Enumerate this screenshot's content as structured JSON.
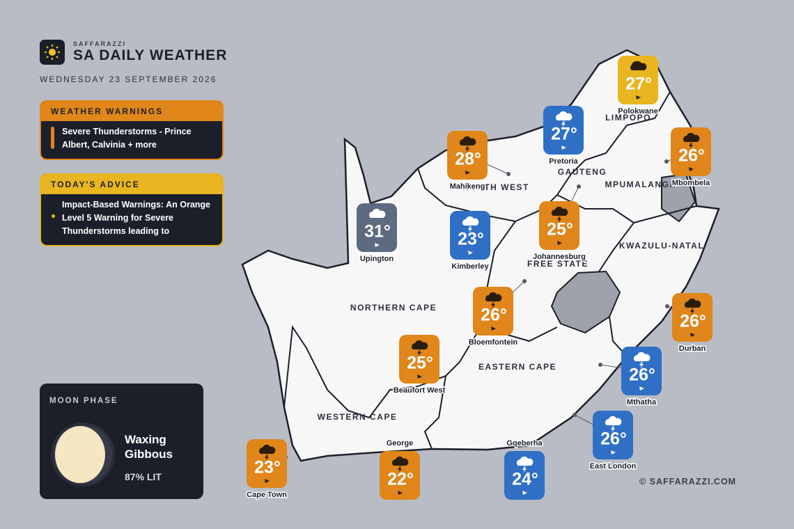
{
  "header": {
    "brand": "SAFFARAZZI",
    "title": "SA DAILY WEATHER",
    "date": "WEDNESDAY 23 SEPTEMBER 2026"
  },
  "warnings": {
    "title": "WEATHER WARNINGS",
    "text": "Severe Thunderstorms - Prince Albert, Calvinia + more"
  },
  "advice": {
    "title": "TODAY'S ADVICE",
    "text": "Impact-Based Warnings: An Orange Level 5 Warning for Severe Thunderstorms leading to"
  },
  "moon": {
    "title": "MOON PHASE",
    "phase": "Waxing Gibbous",
    "lit": "87% LIT"
  },
  "credit": "© SAFFARAZZI.COM",
  "provinces": [
    "LIMPOPO",
    "NORTH WEST",
    "GAUTENG",
    "MPUMALANGA",
    "KWAZULU-NATAL",
    "FREE STATE",
    "NORTHERN CAPE",
    "EASTERN CAPE",
    "WESTERN CAPE"
  ],
  "cities": [
    {
      "name": "Polokwane",
      "temp": "27°",
      "color": "#e9b520"
    },
    {
      "name": "Pretoria",
      "temp": "27°",
      "color": "#2f6fc6"
    },
    {
      "name": "Mahikeng",
      "temp": "28°",
      "color": "#e0861a"
    },
    {
      "name": "Mbombela",
      "temp": "26°",
      "color": "#e0861a"
    },
    {
      "name": "Upington",
      "temp": "31°",
      "color": "#5c6b80"
    },
    {
      "name": "Kimberley",
      "temp": "23°",
      "color": "#2f6fc6"
    },
    {
      "name": "Johannesburg",
      "temp": "25°",
      "color": "#e0861a"
    },
    {
      "name": "Bloemfontein",
      "temp": "26°",
      "color": "#e0861a"
    },
    {
      "name": "Durban",
      "temp": "26°",
      "color": "#e0861a"
    },
    {
      "name": "Beaufort West",
      "temp": "25°",
      "color": "#e0861a"
    },
    {
      "name": "Mthatha",
      "temp": "26°",
      "color": "#2f6fc6"
    },
    {
      "name": "East London",
      "temp": "26°",
      "color": "#2f6fc6"
    },
    {
      "name": "Cape Town",
      "temp": "23°",
      "color": "#e0861a"
    },
    {
      "name": "George",
      "temp": "22°",
      "color": "#e0861a"
    },
    {
      "name": "Gqeberha",
      "temp": "24°",
      "color": "#2f6fc6"
    }
  ]
}
